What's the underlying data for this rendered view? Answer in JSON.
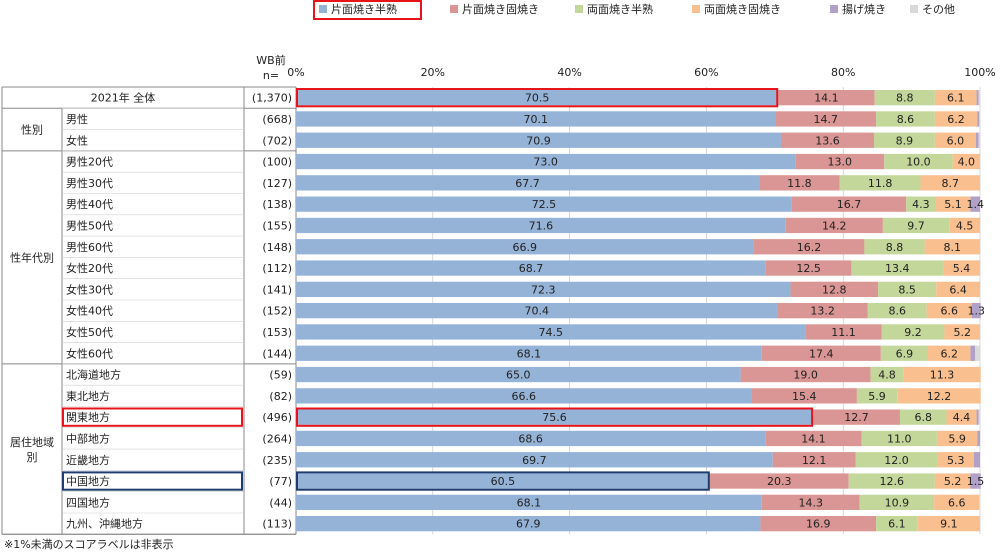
{
  "chart_data": {
    "type": "bar",
    "stacked": "horizontal-100-percent",
    "n_header_line1": "WB前",
    "n_header_line2": "n=",
    "x_ticks": [
      "0%",
      "20%",
      "40%",
      "60%",
      "80%",
      "100%"
    ],
    "xlim": [
      0,
      100
    ],
    "legend_position": "top-right",
    "label_threshold_note": "※1%未満のスコアラベルは非表示",
    "series": [
      {
        "name": "片面焼き半熟",
        "color": "#95b3d7"
      },
      {
        "name": "片面焼き固焼き",
        "color": "#da9694"
      },
      {
        "name": "両面焼き半熟",
        "color": "#c4d79b"
      },
      {
        "name": "両面焼き固焼き",
        "color": "#fabf8f"
      },
      {
        "name": "揚げ焼き",
        "color": "#b1a0c7"
      },
      {
        "name": "その他",
        "color": "#d9d9d9"
      }
    ],
    "highlight_legend": "片面焼き半熟",
    "groups": [
      {
        "label": "",
        "rows": [
          0
        ]
      },
      {
        "label": "性別",
        "rows": [
          1,
          2
        ]
      },
      {
        "label": "性年代別",
        "rows": [
          3,
          4,
          5,
          6,
          7,
          8,
          9,
          10,
          11,
          12
        ]
      },
      {
        "label": "居住地域別",
        "rows": [
          13,
          14,
          15,
          16,
          17,
          18,
          19,
          20
        ]
      }
    ],
    "rows": [
      {
        "label": "2021年 全体",
        "n": "(1,370)",
        "values": [
          70.5,
          14.1,
          8.8,
          6.1,
          0.3,
          0.2
        ],
        "labels": [
          "70.5",
          "14.1",
          "8.8",
          "6.1",
          "",
          ""
        ],
        "highlight": "red",
        "total_row": true
      },
      {
        "label": "男性",
        "n": "(668)",
        "values": [
          70.1,
          14.7,
          8.6,
          6.2,
          0.3,
          0.1
        ],
        "labels": [
          "70.1",
          "14.7",
          "8.6",
          "6.2",
          "",
          ""
        ]
      },
      {
        "label": "女性",
        "n": "(702)",
        "values": [
          70.9,
          13.6,
          8.9,
          6.0,
          0.4,
          0.2
        ],
        "labels": [
          "70.9",
          "13.6",
          "8.9",
          "6.0",
          "",
          ""
        ]
      },
      {
        "label": "男性20代",
        "n": "(100)",
        "values": [
          73.0,
          13.0,
          10.0,
          4.0,
          0,
          0
        ],
        "labels": [
          "73.0",
          "13.0",
          "10.0",
          "4.0",
          "",
          ""
        ]
      },
      {
        "label": "男性30代",
        "n": "(127)",
        "values": [
          67.7,
          11.8,
          11.8,
          8.7,
          0,
          0
        ],
        "labels": [
          "67.7",
          "11.8",
          "11.8",
          "8.7",
          "",
          ""
        ]
      },
      {
        "label": "男性40代",
        "n": "(138)",
        "values": [
          72.5,
          16.7,
          4.3,
          5.1,
          1.4,
          0
        ],
        "labels": [
          "72.5",
          "16.7",
          "4.3",
          "5.1",
          "1.4",
          ""
        ]
      },
      {
        "label": "男性50代",
        "n": "(155)",
        "values": [
          71.6,
          14.2,
          9.7,
          4.5,
          0,
          0
        ],
        "labels": [
          "71.6",
          "14.2",
          "9.7",
          "4.5",
          "",
          ""
        ]
      },
      {
        "label": "男性60代",
        "n": "(148)",
        "values": [
          66.9,
          16.2,
          8.8,
          8.1,
          0,
          0
        ],
        "labels": [
          "66.9",
          "16.2",
          "8.8",
          "8.1",
          "",
          ""
        ]
      },
      {
        "label": "女性20代",
        "n": "(112)",
        "values": [
          68.7,
          12.5,
          13.4,
          5.4,
          0,
          0
        ],
        "labels": [
          "68.7",
          "12.5",
          "13.4",
          "5.4",
          "",
          ""
        ]
      },
      {
        "label": "女性30代",
        "n": "(141)",
        "values": [
          72.3,
          12.8,
          8.5,
          6.4,
          0,
          0
        ],
        "labels": [
          "72.3",
          "12.8",
          "8.5",
          "6.4",
          "",
          ""
        ]
      },
      {
        "label": "女性40代",
        "n": "(152)",
        "values": [
          70.4,
          13.2,
          8.6,
          6.6,
          1.3,
          0
        ],
        "labels": [
          "70.4",
          "13.2",
          "8.6",
          "6.6",
          "1.3",
          ""
        ]
      },
      {
        "label": "女性50代",
        "n": "(153)",
        "values": [
          74.5,
          11.1,
          9.2,
          5.2,
          0,
          0
        ],
        "labels": [
          "74.5",
          "11.1",
          "9.2",
          "5.2",
          "",
          ""
        ]
      },
      {
        "label": "女性60代",
        "n": "(144)",
        "values": [
          68.1,
          17.4,
          6.9,
          6.2,
          0.7,
          0.7
        ],
        "labels": [
          "68.1",
          "17.4",
          "6.9",
          "6.2",
          "",
          ""
        ]
      },
      {
        "label": "北海道地方",
        "n": "(59)",
        "values": [
          65.0,
          19.0,
          4.8,
          11.3,
          0,
          0
        ],
        "labels": [
          "65.0",
          "19.0",
          "4.8",
          "11.3",
          "",
          ""
        ]
      },
      {
        "label": "東北地方",
        "n": "(82)",
        "values": [
          66.6,
          15.4,
          5.9,
          12.2,
          0,
          0
        ],
        "labels": [
          "66.6",
          "15.4",
          "5.9",
          "12.2",
          "",
          ""
        ]
      },
      {
        "label": "関東地方",
        "n": "(496)",
        "values": [
          75.6,
          12.7,
          6.8,
          4.4,
          0.3,
          0.2
        ],
        "labels": [
          "75.6",
          "12.7",
          "6.8",
          "4.4",
          "",
          ""
        ],
        "highlight": "red"
      },
      {
        "label": "中部地方",
        "n": "(264)",
        "values": [
          68.6,
          14.1,
          11.0,
          5.9,
          0.4,
          0
        ],
        "labels": [
          "68.6",
          "14.1",
          "11.0",
          "5.9",
          "",
          ""
        ]
      },
      {
        "label": "近畿地方",
        "n": "(235)",
        "values": [
          69.7,
          12.1,
          12.0,
          5.3,
          0.9,
          0
        ],
        "labels": [
          "69.7",
          "12.1",
          "12.0",
          "5.3",
          "",
          ""
        ]
      },
      {
        "label": "中国地方",
        "n": "(77)",
        "values": [
          60.5,
          20.3,
          12.6,
          5.2,
          1.5,
          0
        ],
        "labels": [
          "60.5",
          "20.3",
          "12.6",
          "5.2",
          "1.5",
          ""
        ],
        "highlight": "navy"
      },
      {
        "label": "四国地方",
        "n": "(44)",
        "values": [
          68.1,
          14.3,
          10.9,
          6.6,
          0,
          0
        ],
        "labels": [
          "68.1",
          "14.3",
          "10.9",
          "6.6",
          "",
          ""
        ]
      },
      {
        "label": "九州、沖縄地方",
        "n": "(113)",
        "values": [
          67.9,
          16.9,
          6.1,
          9.1,
          0,
          0
        ],
        "labels": [
          "67.9",
          "16.9",
          "6.1",
          "9.1",
          "",
          ""
        ]
      }
    ]
  },
  "colors": {
    "highlight_red": "#e8141c",
    "highlight_navy": "#1f3c6e",
    "grid": "#bfbfbf"
  }
}
